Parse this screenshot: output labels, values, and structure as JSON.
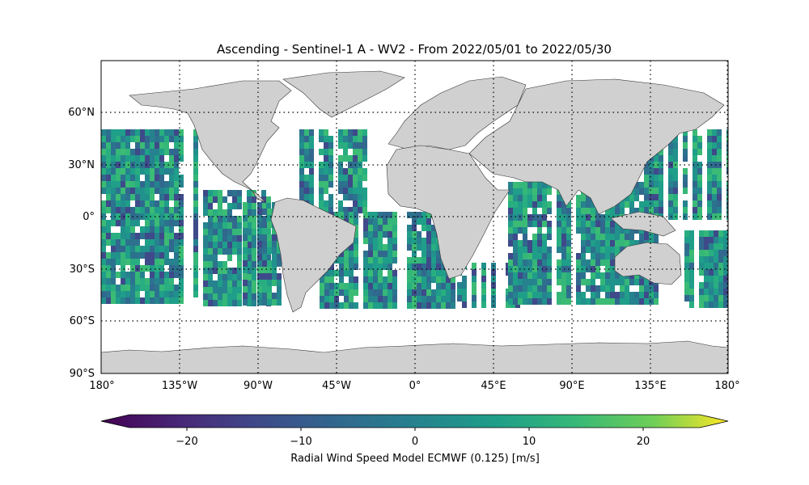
{
  "title": "Ascending - Sentinel-1 A - WV2 - From 2022/05/01 to 2022/05/30",
  "map": {
    "projection": "PlateCarree",
    "extent": {
      "lon": [
        -180,
        180
      ],
      "lat": [
        -90,
        90
      ]
    },
    "land_color": "#d0d0d0",
    "coastline_color": "#333333",
    "grid": {
      "style": "dotted",
      "color": "#000000",
      "lons": [
        -135,
        -90,
        -45,
        0,
        45,
        90,
        135,
        180
      ],
      "lats": [
        -60,
        -30,
        0,
        30,
        60
      ]
    },
    "lat_labels": [
      "60°N",
      "30°N",
      "0°",
      "30°S",
      "60°S",
      "90°S"
    ],
    "lon_labels": [
      "180°",
      "135°W",
      "90°W",
      "45°W",
      "0°",
      "45°E",
      "90°E",
      "135°E",
      "180°"
    ],
    "data_swath_coverage": {
      "lat_range": [
        -50,
        50
      ]
    }
  },
  "colorbar": {
    "label": "Radial Wind Speed Model ECMWF (0.125) [m/s]",
    "colormap": "viridis",
    "range": [
      -25,
      25
    ],
    "extend": "both",
    "ticks": [
      -20,
      -10,
      0,
      10,
      20
    ],
    "tick_labels": [
      "−20",
      "−10",
      "0",
      "10",
      "20"
    ]
  }
}
